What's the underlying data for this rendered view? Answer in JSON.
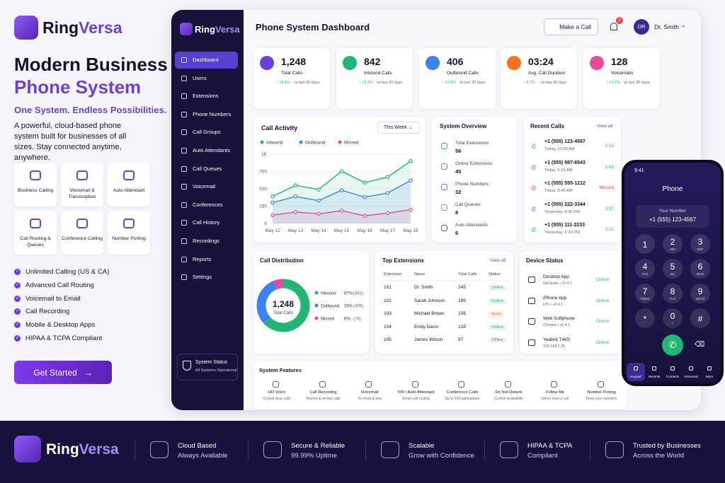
{
  "brand": {
    "first": "Ring",
    "second": "Versa"
  },
  "hero": {
    "title_1": "Modern Business",
    "title_2": "Phone System",
    "tagline": "One System. Endless Possibilities.",
    "description": "A powerful, cloud-based phone system built for businesses of all sizes. Stay connected anytime, anywhere.",
    "features": [
      "Business Calling",
      "Voicemail & Transcription",
      "Auto Attendant",
      "Call Routing & Queues",
      "Conference Calling",
      "Number Porting"
    ],
    "checklist": [
      "Unlimited Calling (US & CA)",
      "Advanced Call Routing",
      "Voicemail to Email",
      "Call Recording",
      "Mobile & Desktop Apps",
      "HIPAA & TCPA Compliant"
    ],
    "cta": "Get Started"
  },
  "sidebar": {
    "nav": [
      "Dashboard",
      "Users",
      "Extensions",
      "Phone Numbers",
      "Call Groups",
      "Auto Attendants",
      "Call Queues",
      "Voicemail",
      "Conferences",
      "Call History",
      "Recordings",
      "Reports",
      "Settings"
    ],
    "status_title": "System Status",
    "status_text": "All Systems Operational"
  },
  "header": {
    "title": "Phone System Dashboard",
    "make_call": "Make a Call",
    "notifications": "3",
    "avatar": "DR",
    "user": "Dr. Smith"
  },
  "stats": [
    {
      "value": "1,248",
      "label": "Total Calls",
      "change": "↑ 18.6%",
      "note": "vs last 30 days",
      "color": "#6d3fe0"
    },
    {
      "value": "842",
      "label": "Inbound Calls",
      "change": "↑ 15.3%",
      "note": "vs last 30 days",
      "color": "#1fb874"
    },
    {
      "value": "406",
      "label": "Outbound Calls",
      "change": "↑ 12.8%",
      "note": "vs last 30 days",
      "color": "#3b82f6"
    },
    {
      "value": "03:24",
      "label": "Avg. Call Duration",
      "change": "↑ 8.7%",
      "note": "vs last 30 days",
      "color": "#f97316"
    },
    {
      "value": "128",
      "label": "Voicemails",
      "change": "↑ 10.2%",
      "note": "vs last 30 days",
      "color": "#ec4899"
    }
  ],
  "chart_data": [
    {
      "type": "line",
      "title": "Call Activity",
      "period": "This Week",
      "categories": [
        "May 12",
        "May 13",
        "May 14",
        "May 15",
        "May 16",
        "May 17",
        "May 18"
      ],
      "series": [
        {
          "name": "Inbound",
          "color": "#22b573",
          "values": [
            390,
            550,
            490,
            755,
            590,
            670,
            900
          ]
        },
        {
          "name": "Outbound",
          "color": "#3b82f6",
          "values": [
            300,
            390,
            330,
            480,
            380,
            440,
            620
          ]
        },
        {
          "name": "Missed",
          "color": "#ec4899",
          "values": [
            120,
            165,
            140,
            185,
            110,
            150,
            200
          ]
        }
      ],
      "ylim": [
        0,
        1000
      ],
      "yticks": [
        0,
        250,
        500,
        750,
        {
          "value": 1000,
          "label": "1K"
        }
      ],
      "grid": true
    },
    {
      "type": "donut",
      "title": "Call Distribution",
      "center_value": "1,248",
      "center_label": "Total Calls",
      "categories": [
        "Inbound",
        "Outbound",
        "Missed"
      ],
      "values": [
        842,
        406,
        78
      ],
      "value_labels": [
        "(842)",
        "(406)",
        "(78)"
      ],
      "percent_labels": [
        "67%",
        "33%",
        "6%"
      ],
      "colors": [
        "#22b573",
        "#3b82f6",
        "#ec4899"
      ]
    }
  ],
  "system_overview": {
    "title": "System Overview",
    "items": [
      {
        "label": "Total Extensions",
        "value": "56"
      },
      {
        "label": "Online Extensions",
        "value": "45"
      },
      {
        "label": "Phone Numbers",
        "value": "32"
      },
      {
        "label": "Call Queues",
        "value": "8"
      },
      {
        "label": "Auto Attendants",
        "value": "6"
      }
    ]
  },
  "recent_calls": {
    "title": "Recent Calls",
    "link": "View all",
    "calls": [
      {
        "number": "+1 (555) 123-4567",
        "time": "Today, 10:30 AM",
        "duration": "2:15"
      },
      {
        "number": "+1 (555) 987-6543",
        "time": "Today, 9:15 AM",
        "duration": "1:43"
      },
      {
        "number": "+1 (555) 555-1212",
        "time": "Today, 8:45 AM",
        "duration": "Missed"
      },
      {
        "number": "+1 (555) 222-3344",
        "time": "Yesterday, 4:30 PM",
        "duration": "3:37"
      },
      {
        "number": "+1 (555) 111-2233",
        "time": "Yesterday, 2:10 PM",
        "duration": "1:22"
      }
    ]
  },
  "top_extensions": {
    "title": "Top Extensions",
    "link": "View all",
    "columns": [
      "Extension",
      "Name",
      "Total Calls",
      "Status"
    ],
    "rows": [
      [
        "101",
        "Dr. Smith",
        "245",
        "Online"
      ],
      [
        "102",
        "Sarah Johnson",
        "189",
        "Online"
      ],
      [
        "103",
        "Michael Brown",
        "156",
        "Away"
      ],
      [
        "104",
        "Emily Davis",
        "128",
        "Online"
      ],
      [
        "105",
        "James Wilson",
        "97",
        "Offline"
      ]
    ]
  },
  "device_status": {
    "title": "Device Status",
    "devices": [
      {
        "name": "Desktop App",
        "detail": "Windows • v2.4.1",
        "status": "Online"
      },
      {
        "name": "iPhone App",
        "detail": "iOS • v2.4.1",
        "status": "Online"
      },
      {
        "name": "Web Softphone",
        "detail": "Chrome • v2.4.1",
        "status": "Online"
      },
      {
        "name": "Yealink T48S",
        "detail": "192.168.1.25",
        "status": "Online"
      }
    ]
  },
  "system_features": {
    "title": "System Features",
    "items": [
      {
        "name": "HD Voice",
        "desc": "Crystal clear calls"
      },
      {
        "name": "Call Recording",
        "desc": "Record & review calls"
      },
      {
        "name": "Voicemail",
        "desc": "To email & text"
      },
      {
        "name": "IVR / Auto Attendant",
        "desc": "Smart call routing"
      },
      {
        "name": "Conference Calls",
        "desc": "Up to 100 participants"
      },
      {
        "name": "Do Not Disturb",
        "desc": "Control availability"
      },
      {
        "name": "Follow Me",
        "desc": "Never miss a call"
      },
      {
        "name": "Number Porting",
        "desc": "Keep your numbers"
      }
    ]
  },
  "phone": {
    "time": "9:41",
    "title": "Phone",
    "your_number_label": "Your Number",
    "your_number": "+1 (555) 123-4567",
    "keys": [
      {
        "digit": "1"
      },
      {
        "digit": "2",
        "letters": "ABC"
      },
      {
        "digit": "3",
        "letters": "DEF"
      },
      {
        "digit": "4",
        "letters": "GHI"
      },
      {
        "digit": "5",
        "letters": "JKL"
      },
      {
        "digit": "6",
        "letters": "MNO"
      },
      {
        "digit": "7",
        "letters": "PQRS"
      },
      {
        "digit": "8",
        "letters": "TUV"
      },
      {
        "digit": "9",
        "letters": "WXYZ"
      },
      {
        "digit": "*"
      },
      {
        "digit": "0",
        "letters": "+"
      },
      {
        "digit": "#"
      }
    ],
    "tabs": [
      "Keypad",
      "Recents",
      "Contacts",
      "Voicemail",
      "More"
    ]
  },
  "footer": {
    "items": [
      {
        "title": "Cloud Based",
        "text": "Always Available"
      },
      {
        "title": "Secure & Reliable",
        "text": "99.99% Uptime"
      },
      {
        "title": "Scalable",
        "text": "Grow with Confidence"
      },
      {
        "title": "HIPAA & TCPA",
        "text": "Compliant"
      },
      {
        "title": "Trusted by Businesses",
        "text": "Across the World"
      }
    ]
  }
}
